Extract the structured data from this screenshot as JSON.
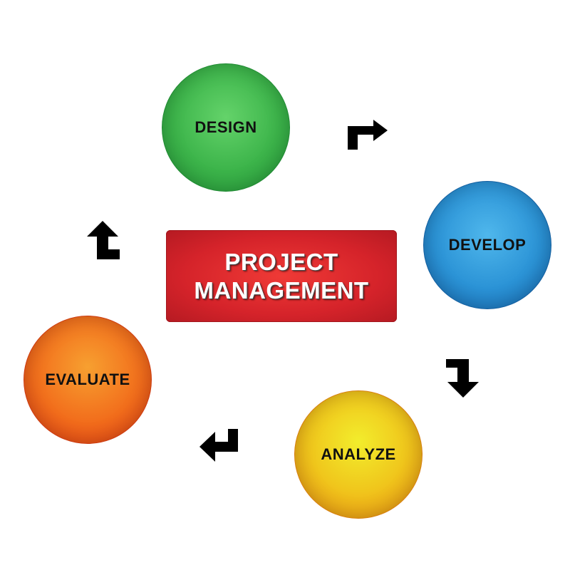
{
  "center": {
    "line1": "PROJECT",
    "line2": "MANAGEMENT",
    "color": "#d5232a"
  },
  "stages": [
    {
      "id": "design",
      "label": "DESIGN",
      "color": "#3cb44a"
    },
    {
      "id": "develop",
      "label": "DEVELOP",
      "color": "#2b93d6"
    },
    {
      "id": "analyze",
      "label": "ANALYZE",
      "color": "#f0c61c"
    },
    {
      "id": "evaluate",
      "label": "EVALUATE",
      "color": "#f26e1c"
    }
  ],
  "arrows": [
    {
      "id": "design-to-develop",
      "icon": "bent-arrow-right-icon"
    },
    {
      "id": "develop-to-analyze",
      "icon": "bent-arrow-down-icon"
    },
    {
      "id": "analyze-to-evaluate",
      "icon": "bent-arrow-left-icon"
    },
    {
      "id": "evaluate-to-design",
      "icon": "bent-arrow-up-icon"
    }
  ],
  "colors": {
    "background": "#ffffff",
    "arrow": "#000000",
    "label": "#111111"
  }
}
